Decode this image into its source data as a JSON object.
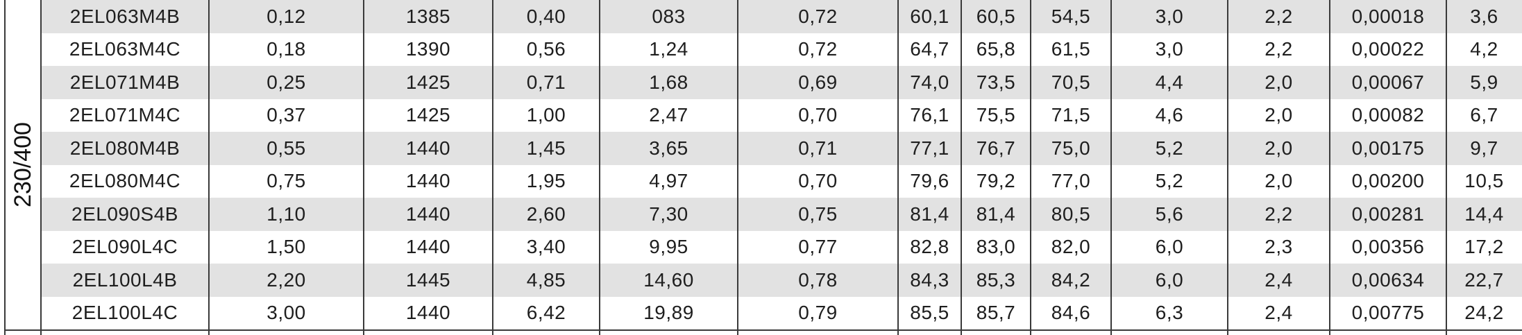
{
  "table": {
    "group_label": "230/400",
    "rows": [
      [
        "2EL063M4B",
        "0,12",
        "1385",
        "0,40",
        "083",
        "0,72",
        "60,1",
        "60,5",
        "54,5",
        "3,0",
        "2,2",
        "0,00018",
        "3,6"
      ],
      [
        "2EL063M4C",
        "0,18",
        "1390",
        "0,56",
        "1,24",
        "0,72",
        "64,7",
        "65,8",
        "61,5",
        "3,0",
        "2,2",
        "0,00022",
        "4,2"
      ],
      [
        "2EL071M4B",
        "0,25",
        "1425",
        "0,71",
        "1,68",
        "0,69",
        "74,0",
        "73,5",
        "70,5",
        "4,4",
        "2,0",
        "0,00067",
        "5,9"
      ],
      [
        "2EL071M4C",
        "0,37",
        "1425",
        "1,00",
        "2,47",
        "0,70",
        "76,1",
        "75,5",
        "71,5",
        "4,6",
        "2,0",
        "0,00082",
        "6,7"
      ],
      [
        "2EL080M4B",
        "0,55",
        "1440",
        "1,45",
        "3,65",
        "0,71",
        "77,1",
        "76,7",
        "75,0",
        "5,2",
        "2,0",
        "0,00175",
        "9,7"
      ],
      [
        "2EL080M4C",
        "0,75",
        "1440",
        "1,95",
        "4,97",
        "0,70",
        "79,6",
        "79,2",
        "77,0",
        "5,2",
        "2,0",
        "0,00200",
        "10,5"
      ],
      [
        "2EL090S4B",
        "1,10",
        "1440",
        "2,60",
        "7,30",
        "0,75",
        "81,4",
        "81,4",
        "80,5",
        "5,6",
        "2,2",
        "0,00281",
        "14,4"
      ],
      [
        "2EL090L4C",
        "1,50",
        "1440",
        "3,40",
        "9,95",
        "0,77",
        "82,8",
        "83,0",
        "82,0",
        "6,0",
        "2,3",
        "0,00356",
        "17,2"
      ],
      [
        "2EL100L4B",
        "2,20",
        "1445",
        "4,85",
        "14,60",
        "0,78",
        "84,3",
        "85,3",
        "84,2",
        "6,0",
        "2,4",
        "0,00634",
        "22,7"
      ],
      [
        "2EL100L4C",
        "3,00",
        "1440",
        "6,42",
        "19,89",
        "0,79",
        "85,5",
        "85,7",
        "84,6",
        "6,3",
        "2,4",
        "0,00775",
        "24,2"
      ]
    ]
  }
}
